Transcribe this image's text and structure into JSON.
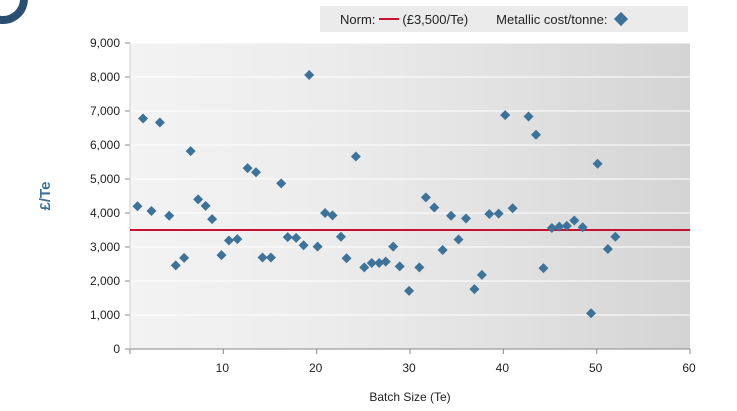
{
  "colors": {
    "accent": "#3d7299",
    "norm": "#c8102e",
    "badge": "#2a4f72"
  },
  "legend": {
    "norm_label": "Norm:",
    "norm_value": "(£3,500/Te)",
    "metallic_label": "Metallic cost/tonne:"
  },
  "chart_data": {
    "type": "scatter",
    "xlabel": "Batch Size (Te)",
    "ylabel": "£/Te",
    "xlim": [
      0,
      60
    ],
    "ylim": [
      0,
      9000
    ],
    "x_ticks": [
      "10",
      "20",
      "30",
      "40",
      "50",
      "60"
    ],
    "y_ticks": [
      "0",
      "1,000",
      "2,000",
      "3,000",
      "4,000",
      "5,000",
      "6,000",
      "7,000",
      "8,000",
      "9,000"
    ],
    "grid": "horizontal",
    "background": "gradient, light grey at left darkening to the right",
    "norm": 3500,
    "series": [
      {
        "name": "Metallic cost/tonne:",
        "marker": "diamond",
        "points": [
          [
            0.8,
            4200
          ],
          [
            1.4,
            6780
          ],
          [
            2.3,
            4060
          ],
          [
            3.2,
            6660
          ],
          [
            4.2,
            3920
          ],
          [
            4.9,
            2460
          ],
          [
            5.8,
            2680
          ],
          [
            6.5,
            5820
          ],
          [
            7.3,
            4400
          ],
          [
            8.1,
            4210
          ],
          [
            8.8,
            3820
          ],
          [
            9.8,
            2760
          ],
          [
            10.6,
            3190
          ],
          [
            11.5,
            3230
          ],
          [
            12.6,
            5320
          ],
          [
            13.5,
            5200
          ],
          [
            14.2,
            2690
          ],
          [
            15.1,
            2690
          ],
          [
            16.2,
            4870
          ],
          [
            16.9,
            3290
          ],
          [
            17.8,
            3270
          ],
          [
            18.6,
            3050
          ],
          [
            19.2,
            8060
          ],
          [
            20.1,
            3010
          ],
          [
            20.9,
            4000
          ],
          [
            21.7,
            3930
          ],
          [
            22.6,
            3300
          ],
          [
            23.2,
            2670
          ],
          [
            24.2,
            5660
          ],
          [
            25.1,
            2400
          ],
          [
            25.9,
            2530
          ],
          [
            26.7,
            2530
          ],
          [
            27.4,
            2570
          ],
          [
            28.2,
            3010
          ],
          [
            28.9,
            2430
          ],
          [
            29.9,
            1710
          ],
          [
            31.0,
            2400
          ],
          [
            31.7,
            4460
          ],
          [
            32.6,
            4160
          ],
          [
            33.5,
            2910
          ],
          [
            34.4,
            3920
          ],
          [
            35.2,
            3220
          ],
          [
            36.0,
            3840
          ],
          [
            36.9,
            1760
          ],
          [
            37.7,
            2180
          ],
          [
            38.5,
            3970
          ],
          [
            39.5,
            3980
          ],
          [
            40.2,
            6880
          ],
          [
            41.0,
            4140
          ],
          [
            42.7,
            6840
          ],
          [
            43.5,
            6300
          ],
          [
            44.3,
            2380
          ],
          [
            45.2,
            3560
          ],
          [
            46.0,
            3600
          ],
          [
            46.8,
            3620
          ],
          [
            47.6,
            3780
          ],
          [
            48.5,
            3580
          ],
          [
            49.4,
            1050
          ],
          [
            50.1,
            5450
          ],
          [
            51.2,
            2940
          ],
          [
            52.0,
            3300
          ]
        ]
      }
    ]
  }
}
